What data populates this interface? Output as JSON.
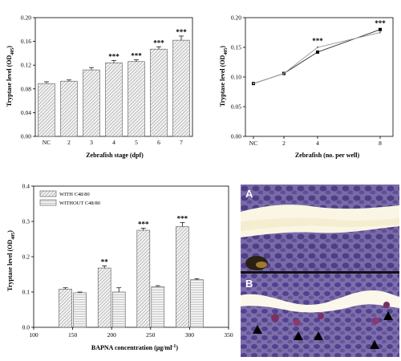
{
  "chart_data": [
    {
      "type": "bar",
      "xlabel": "Zebrafish stage (dpf)",
      "ylabel_main": "Tryptase level (OD",
      "ylabel_sub": "405",
      "ylabel_end": ")",
      "categories": [
        "NC",
        "2",
        "3",
        "4",
        "5",
        "6",
        "7"
      ],
      "values": [
        0.089,
        0.093,
        0.112,
        0.124,
        0.126,
        0.147,
        0.162
      ],
      "errors": [
        0.003,
        0.002,
        0.004,
        0.004,
        0.003,
        0.004,
        0.007
      ],
      "significance": [
        "",
        "",
        "",
        "***",
        "***",
        "***",
        "***"
      ],
      "ylim": [
        0,
        0.2
      ],
      "yticks": [
        "0.00",
        "0.04",
        "0.08",
        "0.12",
        "0.16",
        "0.20"
      ]
    },
    {
      "type": "line",
      "xlabel": "Zebrafish (no. per well)",
      "ylabel_main": "Tryptase level (OD",
      "ylabel_sub": "405",
      "ylabel_end": ")",
      "categories": [
        "NC",
        "2",
        "4",
        "8"
      ],
      "x": [
        0,
        2,
        4,
        8
      ],
      "series": [
        {
          "values": [
            0.089,
            0.106,
            0.142,
            0.18
          ],
          "marker": "square"
        },
        {
          "values": [
            0.089,
            0.106,
            0.15,
            0.175
          ],
          "marker": "none"
        }
      ],
      "significance": [
        "",
        "",
        "***",
        "***"
      ],
      "ylim": [
        0,
        0.2
      ],
      "yticks": [
        "0.00",
        "0.05",
        "0.10",
        "0.15",
        "0.20"
      ]
    },
    {
      "type": "bar",
      "xlabel_main": "BAPNA concentration (μg/ml",
      "xlabel_sup": "-1",
      "xlabel_end": ")",
      "ylabel_main": "Tryptase level (OD",
      "ylabel_sub": "405",
      "ylabel_end": ")",
      "x": [
        150,
        200,
        250,
        300
      ],
      "xlim": [
        100,
        350
      ],
      "xticks": [
        "100",
        "150",
        "200",
        "250",
        "300",
        "350"
      ],
      "series": [
        {
          "name": "WITH C48/80",
          "values": [
            0.108,
            0.168,
            0.275,
            0.285
          ],
          "errors": [
            0.004,
            0.006,
            0.006,
            0.012
          ]
        },
        {
          "name": "WITHOUT C48/80",
          "values": [
            0.098,
            0.1,
            0.115,
            0.135
          ],
          "errors": [
            0.002,
            0.012,
            0.003,
            0.003
          ]
        }
      ],
      "significance": [
        "",
        "**",
        "***",
        "***"
      ],
      "ylim": [
        0,
        0.4
      ],
      "yticks": [
        "0.0",
        "0.1",
        "0.2",
        "0.3",
        "0.4"
      ],
      "legend": "top-left"
    }
  ],
  "photo": {
    "panel_a_label": "A",
    "panel_b_label": "B",
    "arrow_icon": "black-triangle",
    "arrow_count": 5
  }
}
